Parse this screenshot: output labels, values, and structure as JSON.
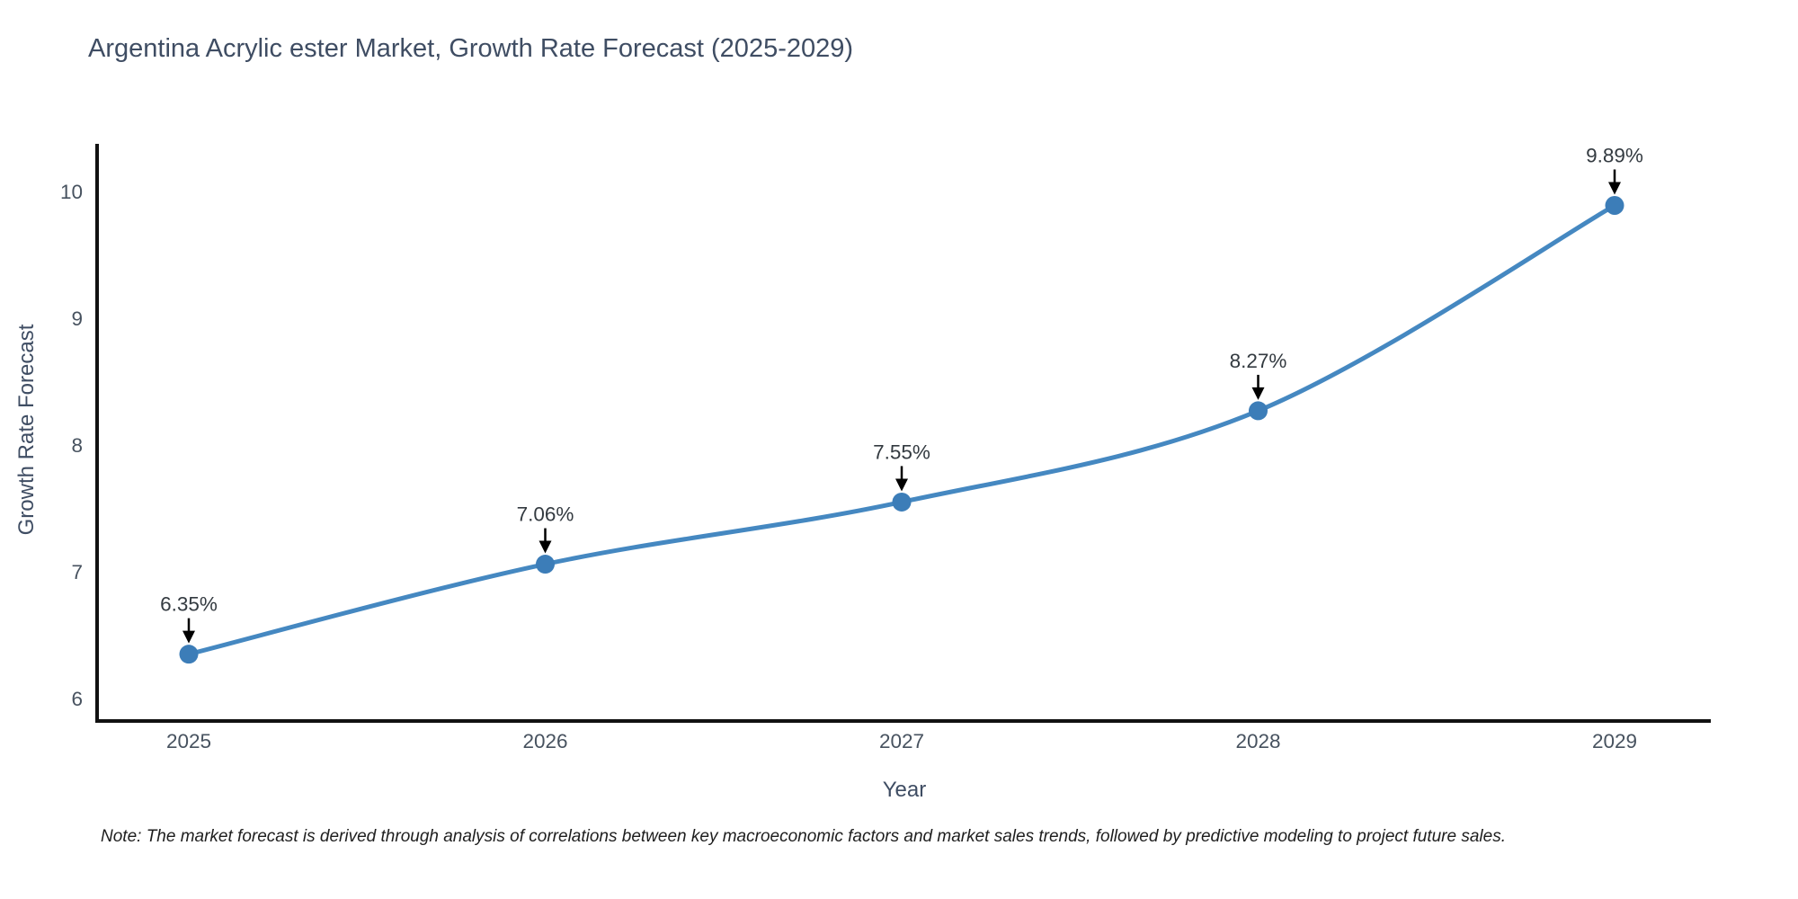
{
  "title": "Argentina Acrylic ester Market, Growth Rate Forecast (2025-2029)",
  "note": "Note: The market forecast is derived through analysis of correlations between key macroeconomic factors and market sales trends, followed by predictive modeling to project future sales.",
  "chart_data": {
    "type": "line",
    "title": "Argentina Acrylic ester Market, Growth Rate Forecast (2025-2029)",
    "xlabel": "Year",
    "ylabel": "Growth Rate Forecast",
    "categories": [
      "2025",
      "2026",
      "2027",
      "2028",
      "2029"
    ],
    "values": [
      6.35,
      7.06,
      7.55,
      8.27,
      9.89
    ],
    "point_labels": [
      "6.35%",
      "7.06%",
      "7.55%",
      "8.27%",
      "9.89%"
    ],
    "yticks": [
      6,
      7,
      8,
      9,
      10
    ],
    "ylim": [
      5.8,
      10.4
    ],
    "grid": false,
    "legend_position": "none",
    "curve": "spline",
    "annotations": "value labels with downward arrows above each point",
    "colors": {
      "line": "#4588c1",
      "marker": "#3c7db8",
      "axis": "#111111",
      "tick_label": "#47525f",
      "title": "#3f4d63",
      "annotation_text": "#333a40",
      "annotation_arrow": "#000000"
    }
  }
}
